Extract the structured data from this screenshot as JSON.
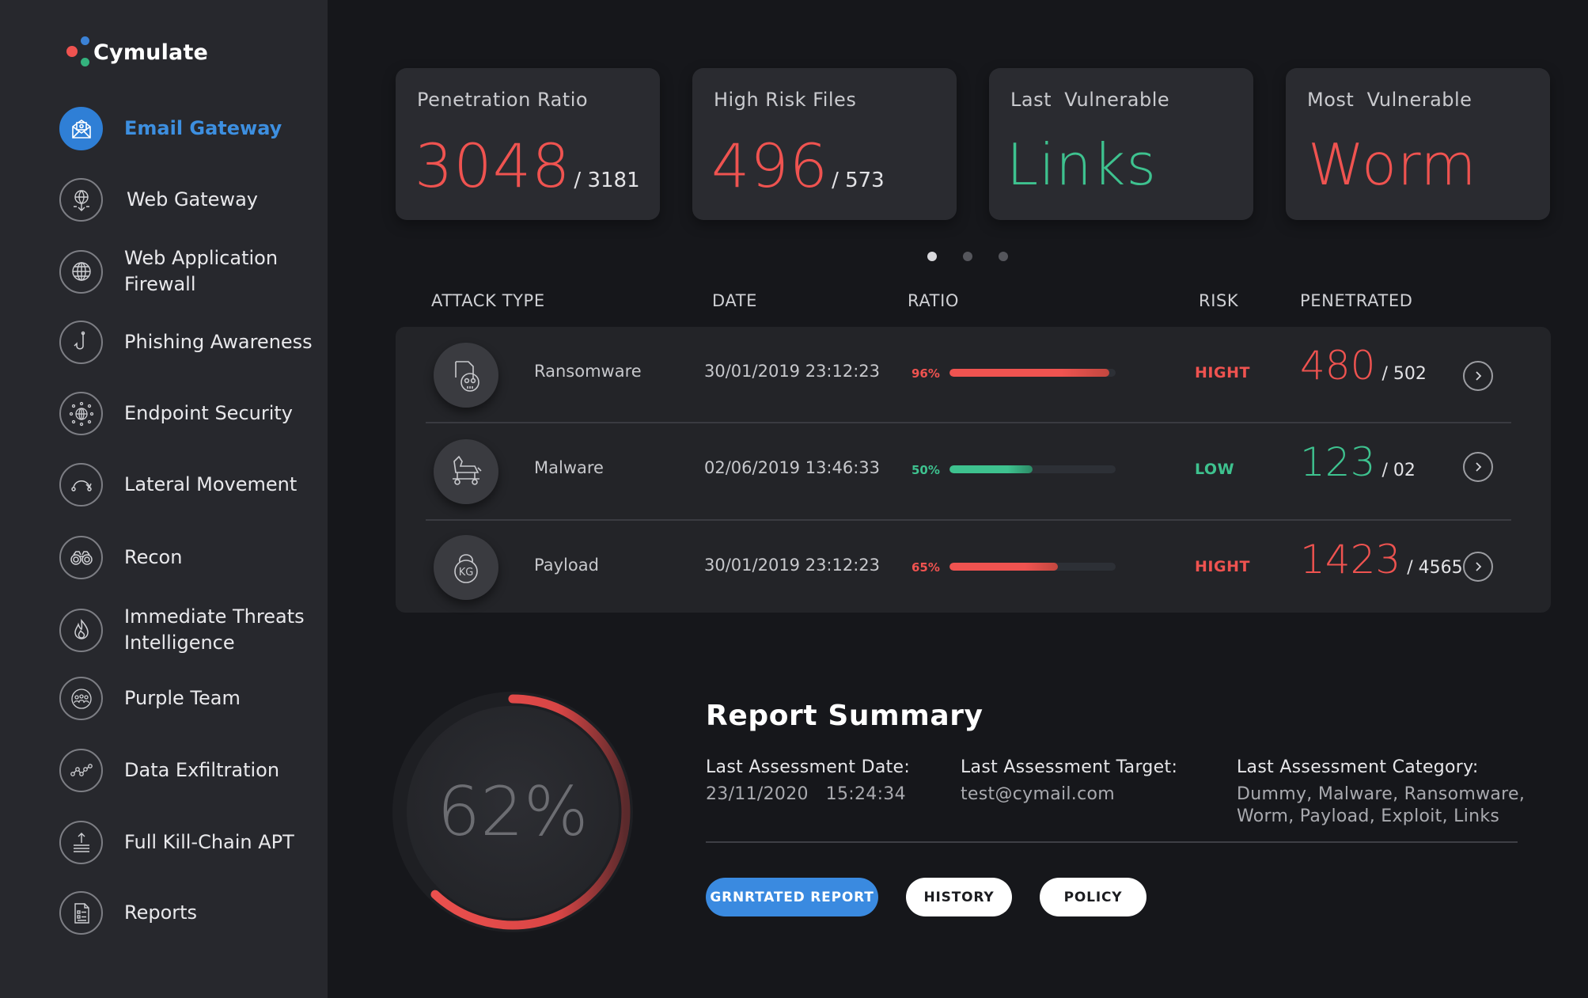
{
  "brand": {
    "name": "Cymulate"
  },
  "sidebar": {
    "items": [
      {
        "label": "Email Gateway",
        "icon": "email-icon",
        "active": true
      },
      {
        "label": "Web Gateway",
        "icon": "web-gateway-icon"
      },
      {
        "label": "Web Application\nFirewall",
        "icon": "globe-icon"
      },
      {
        "label": "Phishing Awareness",
        "icon": "hook-icon"
      },
      {
        "label": "Endpoint Security",
        "icon": "network-globe-icon"
      },
      {
        "label": "Lateral Movement",
        "icon": "arc-arrow-icon"
      },
      {
        "label": "Recon",
        "icon": "binoculars-icon"
      },
      {
        "label": "Immediate Threats\nIntelligence",
        "icon": "flame-icon"
      },
      {
        "label": "Purple Team",
        "icon": "team-icon"
      },
      {
        "label": "Data Exfiltration",
        "icon": "graph-icon"
      },
      {
        "label": "Full Kill-Chain APT",
        "icon": "upload-layers-icon"
      },
      {
        "label": "Reports",
        "icon": "document-icon"
      }
    ]
  },
  "cards": [
    {
      "title": "Penetration Ratio",
      "value": "3048",
      "total": "/ 3181"
    },
    {
      "title": "High Risk Files",
      "value": "496",
      "total": "/ 573"
    },
    {
      "title": "Last  Vulnerable",
      "value": "Links"
    },
    {
      "title": "Most  Vulnerable",
      "value": "Worm"
    }
  ],
  "carousel": {
    "pages": 3,
    "active": 1
  },
  "table": {
    "headers": {
      "attack_type": "ATTACK TYPE",
      "date": "DATE",
      "ratio": "RATIO",
      "risk": "RISK",
      "penetrated": "PENETRATED"
    },
    "rows": [
      {
        "name": "Ransomware",
        "icon": "skull-file-icon",
        "date": "30/01/2019 23:12:23",
        "ratio_label": "96%",
        "ratio": 0.96,
        "risk": "HIGHT",
        "penetrated": "480",
        "total": "/ 502"
      },
      {
        "name": "Malware",
        "icon": "trojan-horse-icon",
        "date": "02/06/2019 13:46:33",
        "ratio_label": "50%",
        "ratio": 0.5,
        "risk": "LOW",
        "penetrated": "123",
        "total": "/ 02"
      },
      {
        "name": "Payload",
        "icon": "kettlebell-icon",
        "date": "30/01/2019 23:12:23",
        "ratio_label": "65%",
        "ratio": 0.65,
        "risk": "HIGHT",
        "penetrated": "1423",
        "total": "/ 4565"
      }
    ]
  },
  "gauge": {
    "label": "62%",
    "value": 0.62
  },
  "report": {
    "title": "Report Summary",
    "date_label": "Last Assessment Date:",
    "date_value": "23/11/2020   15:24:34",
    "target_label": "Last Assessment Target:",
    "target_value": "test@cymail.com",
    "category_label": "Last Assessment Category:",
    "category_value": "Dummy, Malware, Ransomware,\nWorm, Payload, Exploit, Links",
    "buttons": {
      "generated": "GRNRTATED REPORT",
      "history": "HISTORY",
      "policy": "POLICY"
    }
  },
  "colors": {
    "accent_blue": "#3a8ae0",
    "danger": "#ef5350",
    "success": "#3ec28f",
    "sidebar_bg": "#27282d",
    "page_bg": "#16171b"
  }
}
